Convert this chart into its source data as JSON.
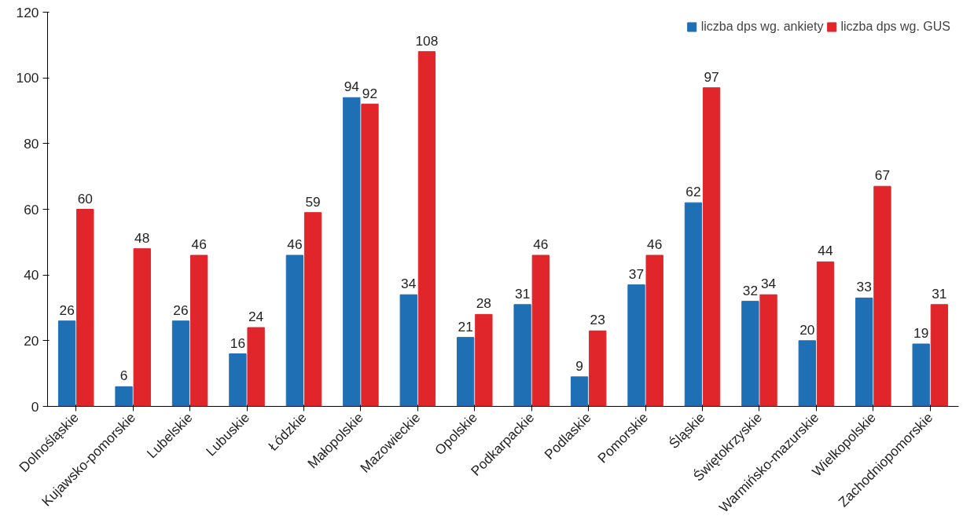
{
  "chart_data": {
    "type": "bar",
    "categories": [
      "Dolnośląskie",
      "Kujawsko-pomorskie",
      "Lubelskie",
      "Lubuskie",
      "Łódzkie",
      "Małopolskie",
      "Mazowieckie",
      "Opolskie",
      "Podkarpackie",
      "Podlaskie",
      "Pomorskie",
      "Śląskie",
      "Świętokrzyskie",
      "Warmińsko-mazurskie",
      "Wielkopolskie",
      "Zachodniopomorskie"
    ],
    "series": [
      {
        "name": "liczba dps wg. ankiety",
        "color": "#1f6fb5",
        "values": [
          26,
          6,
          26,
          16,
          46,
          94,
          34,
          21,
          31,
          9,
          37,
          62,
          32,
          20,
          33,
          19
        ]
      },
      {
        "name": "liczba dps wg. GUS",
        "color": "#e0262a",
        "values": [
          60,
          48,
          46,
          24,
          59,
          92,
          108,
          28,
          46,
          23,
          46,
          97,
          34,
          44,
          67,
          31
        ]
      }
    ],
    "ylim": [
      0,
      120
    ],
    "yticks": [
      0,
      20,
      40,
      60,
      80,
      100,
      120
    ],
    "data_labels": true,
    "legend": "top right",
    "grid": false
  }
}
